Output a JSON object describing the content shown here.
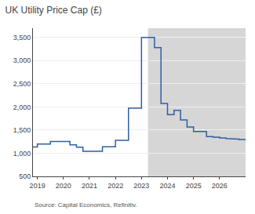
{
  "chart_data": {
    "type": "line",
    "title": "UK Utility Price Cap (£)",
    "annotations": [
      "Source: Capital Economics, Refinitiv."
    ],
    "x": [
      2018.83,
      2019.0,
      2019.0,
      2019.5,
      2019.5,
      2019.75,
      2019.75,
      2020.25,
      2020.25,
      2020.5,
      2020.5,
      2020.75,
      2020.75,
      2021.25,
      2021.25,
      2021.5,
      2021.5,
      2021.75,
      2021.75,
      2022.0,
      2022.0,
      2022.5,
      2022.5,
      2022.75,
      2022.75,
      2023.0,
      2023.0,
      2023.25,
      2023.25,
      2023.5,
      2023.5,
      2023.75,
      2023.75,
      2024.0,
      2024.0,
      2024.25,
      2024.25,
      2024.5,
      2024.5,
      2024.75,
      2024.75,
      2025.0,
      2025.0,
      2025.5,
      2025.5,
      2025.75,
      2025.75,
      2026.0,
      2026.0,
      2026.25,
      2026.25,
      2026.5,
      2026.5,
      2026.75,
      2026.75,
      2027.0
    ],
    "values": [
      1137,
      1137,
      1200,
      1200,
      1254,
      1254,
      1254,
      1254,
      1180,
      1180,
      1130,
      1130,
      1042,
      1042,
      1042,
      1042,
      1138,
      1138,
      1138,
      1138,
      1277,
      1277,
      1971,
      1971,
      1971,
      1971,
      3500,
      3500,
      3500,
      3500,
      3280,
      3280,
      2074,
      2074,
      1834,
      1834,
      1928,
      1928,
      1717,
      1717,
      1568,
      1568,
      1470,
      1470,
      1361,
      1361,
      1345,
      1345,
      1330,
      1330,
      1315,
      1315,
      1305,
      1305,
      1295,
      1295
    ],
    "color": "#2E5FA3",
    "shaded_region": {
      "from": 2023.25,
      "color": "#D6D6D6"
    },
    "xlim": [
      2018.83,
      2027.0
    ],
    "xticks": [
      2019,
      2020,
      2021,
      2022,
      2023,
      2024,
      2025,
      2026
    ],
    "ylim": [
      500,
      3700
    ],
    "yticks": [
      500,
      {
        "value": 1000,
        "label": "1,000"
      },
      {
        "value": 1500,
        "label": "1,500"
      },
      {
        "value": 2000,
        "label": "2,000"
      },
      {
        "value": 2500,
        "label": "2,500"
      },
      {
        "value": 3000,
        "label": "3,000"
      },
      {
        "value": 3500,
        "label": "3,500"
      }
    ],
    "grid": true
  }
}
